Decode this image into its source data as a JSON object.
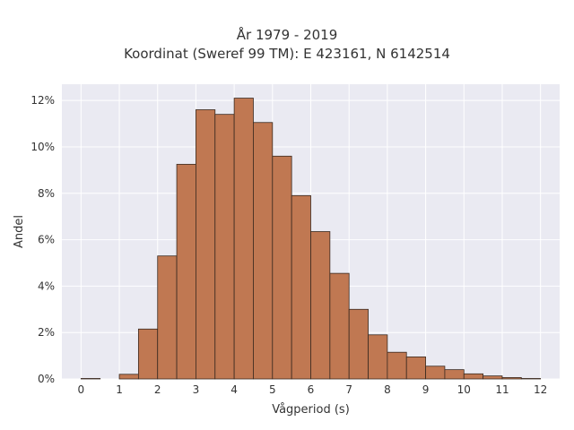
{
  "title_line1": "År 1979 - 2019",
  "title_line2": "Koordinat (Sweref 99 TM): E 423161, N 6142514",
  "chart_data": {
    "type": "bar",
    "title": "År 1979 - 2019\nKoordinat (Sweref 99 TM): E 423161, N 6142514",
    "xlabel": "Vågperiod (s)",
    "ylabel": "Andel",
    "xlim": [
      -0.5,
      12.5
    ],
    "ylim": [
      0,
      12.7
    ],
    "x_ticks": [
      "0",
      "1",
      "2",
      "3",
      "4",
      "5",
      "6",
      "7",
      "8",
      "9",
      "10",
      "11",
      "12"
    ],
    "y_ticks": [
      "0%",
      "2%",
      "4%",
      "6%",
      "8%",
      "10%",
      "12%"
    ],
    "bin_width": 0.5,
    "bins": [
      {
        "x0": 0.0,
        "x1": 0.5,
        "value": 0.02
      },
      {
        "x0": 0.5,
        "x1": 1.0,
        "value": 0.0
      },
      {
        "x0": 1.0,
        "x1": 1.5,
        "value": 0.2
      },
      {
        "x0": 1.5,
        "x1": 2.0,
        "value": 2.15
      },
      {
        "x0": 2.0,
        "x1": 2.5,
        "value": 5.3
      },
      {
        "x0": 2.5,
        "x1": 3.0,
        "value": 9.25
      },
      {
        "x0": 3.0,
        "x1": 3.5,
        "value": 11.6
      },
      {
        "x0": 3.5,
        "x1": 4.0,
        "value": 11.4
      },
      {
        "x0": 4.0,
        "x1": 4.5,
        "value": 12.1
      },
      {
        "x0": 4.5,
        "x1": 5.0,
        "value": 11.05
      },
      {
        "x0": 5.0,
        "x1": 5.5,
        "value": 9.6
      },
      {
        "x0": 5.5,
        "x1": 6.0,
        "value": 7.9
      },
      {
        "x0": 6.0,
        "x1": 6.5,
        "value": 6.35
      },
      {
        "x0": 6.5,
        "x1": 7.0,
        "value": 4.55
      },
      {
        "x0": 7.0,
        "x1": 7.5,
        "value": 3.0
      },
      {
        "x0": 7.5,
        "x1": 8.0,
        "value": 1.9
      },
      {
        "x0": 8.0,
        "x1": 8.5,
        "value": 1.15
      },
      {
        "x0": 8.5,
        "x1": 9.0,
        "value": 0.95
      },
      {
        "x0": 9.0,
        "x1": 9.5,
        "value": 0.55
      },
      {
        "x0": 9.5,
        "x1": 10.0,
        "value": 0.4
      },
      {
        "x0": 10.0,
        "x1": 10.5,
        "value": 0.22
      },
      {
        "x0": 10.5,
        "x1": 11.0,
        "value": 0.13
      },
      {
        "x0": 11.0,
        "x1": 11.5,
        "value": 0.06
      },
      {
        "x0": 11.5,
        "x1": 12.0,
        "value": 0.02
      }
    ],
    "grid": true,
    "bar_color": "#c07852",
    "edge_color": "#3a2a20",
    "background_color": "#eaeaf2"
  }
}
